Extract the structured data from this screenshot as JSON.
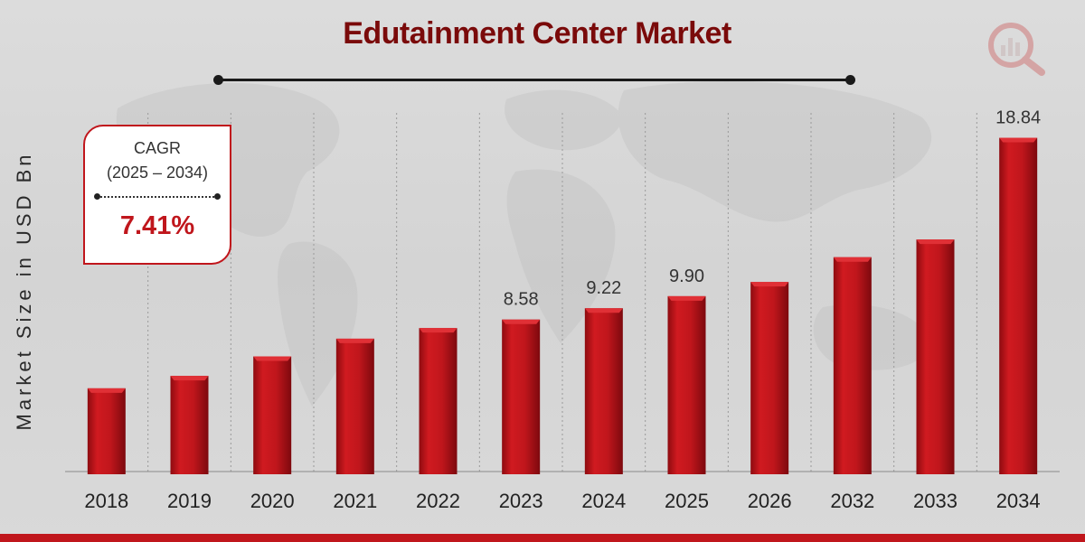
{
  "colors": {
    "title": "#7a0a0a",
    "bar": "#c0161c",
    "bar_dark": "#8e0b10",
    "accent": "#c0161c",
    "text": "#333333"
  },
  "logo": {
    "icon": "analytics-magnifier-icon"
  },
  "cagr": {
    "label": "CAGR",
    "range": "(2025 – 2034)",
    "value": "7.41%"
  },
  "chart_data": {
    "type": "bar",
    "title": "Edutainment Center Market",
    "ylabel": "Market Size in USD Bn",
    "xlabel": "",
    "categories": [
      "2018",
      "2019",
      "2020",
      "2021",
      "2022",
      "2023",
      "2024",
      "2025",
      "2026",
      "2032",
      "2033",
      "2034"
    ],
    "values": [
      4.7,
      5.4,
      6.5,
      7.5,
      8.1,
      8.58,
      9.22,
      9.9,
      10.7,
      12.1,
      13.1,
      18.84
    ],
    "data_labels": [
      "",
      "",
      "",
      "",
      "",
      "8.58",
      "9.22",
      "9.90",
      "",
      "",
      "",
      "18.84"
    ],
    "grid": "vertical dotted",
    "legend": "none"
  }
}
